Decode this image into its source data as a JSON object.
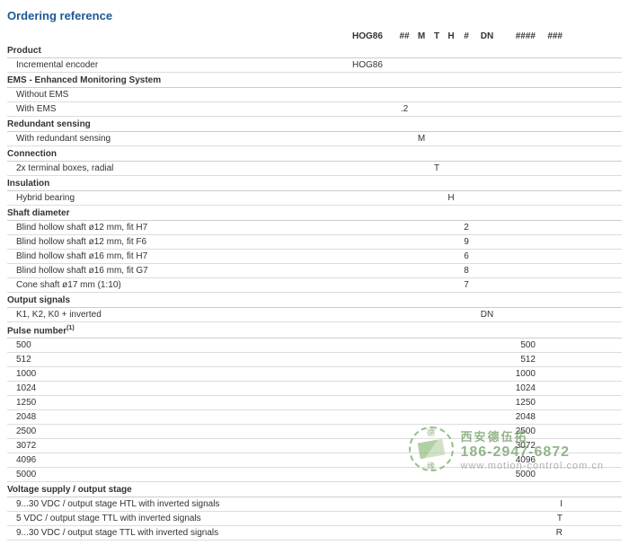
{
  "title": "Ordering reference",
  "header_codes": [
    "HOG86",
    "##",
    "M",
    "T",
    "H",
    "#",
    "DN",
    "####",
    "###"
  ],
  "sections": [
    {
      "name": "Product",
      "rows": [
        {
          "label": "Incremental encoder",
          "col": 0,
          "value": "HOG86"
        }
      ]
    },
    {
      "name": "EMS - Enhanced Monitoring System",
      "rows": [
        {
          "label": "Without EMS",
          "col": 1,
          "value": ""
        },
        {
          "label": "With EMS",
          "col": 1,
          "value": ".2"
        }
      ]
    },
    {
      "name": "Redundant sensing",
      "rows": [
        {
          "label": "With redundant sensing",
          "col": 2,
          "value": "M"
        }
      ]
    },
    {
      "name": "Connection",
      "rows": [
        {
          "label": "2x terminal boxes, radial",
          "col": 3,
          "value": "T"
        }
      ]
    },
    {
      "name": "Insulation",
      "rows": [
        {
          "label": "Hybrid bearing",
          "col": 4,
          "value": "H"
        }
      ]
    },
    {
      "name": "Shaft diameter",
      "rows": [
        {
          "label": "Blind hollow shaft ø12 mm, fit H7",
          "col": 5,
          "value": "2"
        },
        {
          "label": "Blind hollow shaft ø12 mm, fit F6",
          "col": 5,
          "value": "9"
        },
        {
          "label": "Blind hollow shaft ø16 mm, fit H7",
          "col": 5,
          "value": "6"
        },
        {
          "label": "Blind hollow shaft ø16 mm, fit G7",
          "col": 5,
          "value": "8"
        },
        {
          "label": "Cone shaft ø17 mm (1:10)",
          "col": 5,
          "value": "7"
        }
      ]
    },
    {
      "name": "Output signals",
      "rows": [
        {
          "label": "K1, K2, K0 + inverted",
          "col": 6,
          "value": "DN"
        }
      ]
    },
    {
      "name": "Pulse number",
      "footnote": "(1)",
      "rows": [
        {
          "label": "500",
          "col": 7,
          "value": "500"
        },
        {
          "label": "512",
          "col": 7,
          "value": "512"
        },
        {
          "label": "1000",
          "col": 7,
          "value": "1000"
        },
        {
          "label": "1024",
          "col": 7,
          "value": "1024"
        },
        {
          "label": "1250",
          "col": 7,
          "value": "1250"
        },
        {
          "label": "2048",
          "col": 7,
          "value": "2048"
        },
        {
          "label": "2500",
          "col": 7,
          "value": "2500"
        },
        {
          "label": "3072",
          "col": 7,
          "value": "3072"
        },
        {
          "label": "4096",
          "col": 7,
          "value": "4096"
        },
        {
          "label": "5000",
          "col": 7,
          "value": "5000"
        }
      ]
    },
    {
      "name": "Voltage supply / output stage",
      "rows": [
        {
          "label": "9...30 VDC / output stage HTL with inverted signals",
          "col": 8,
          "value": "I"
        },
        {
          "label": "5 VDC / output stage TTL with inverted signals",
          "col": 8,
          "value": "T"
        },
        {
          "label": "9...30 VDC / output stage TTL with inverted signals",
          "col": 8,
          "value": "R"
        }
      ]
    }
  ],
  "watermark": {
    "company": "西安德伍拓",
    "phone": "186-2947-6872",
    "url": "www.motion-control.com.cn",
    "logo_char_top": "德",
    "logo_char_bottom": "缘"
  },
  "colors": {
    "title": "#1c5896",
    "border": "#cccccc",
    "text": "#333333",
    "watermark_green": "#5a8f4c"
  }
}
